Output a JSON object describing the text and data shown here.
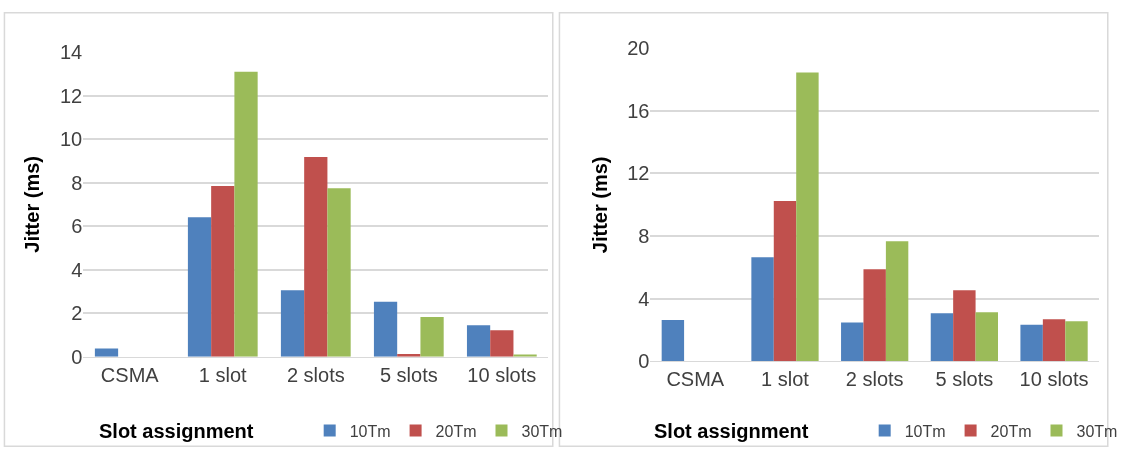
{
  "chart_data": [
    {
      "type": "bar",
      "xlabel": "Slot assignment",
      "ylabel": "Jitter (ms)",
      "categories": [
        "CSMA",
        "1 slot",
        "2 slots",
        "5 slots",
        "10 slots"
      ],
      "series": [
        {
          "name": "10Tm",
          "color": "#4f81bd",
          "values": [
            0.38,
            6.41,
            3.05,
            2.52,
            1.44
          ]
        },
        {
          "name": "20Tm",
          "color": "#c0504d",
          "values": [
            0,
            7.84,
            9.18,
            0.12,
            1.22
          ]
        },
        {
          "name": "30Tm",
          "color": "#9bbb59",
          "values": [
            0,
            13.1,
            7.74,
            1.82,
            0.1
          ]
        }
      ],
      "ylim": [
        0,
        14
      ],
      "yticks": [
        0,
        2,
        4,
        6,
        8,
        10,
        12,
        14
      ],
      "grid": "y",
      "legend": "bottom"
    },
    {
      "type": "bar",
      "xlabel": "Slot assignment",
      "ylabel": "Jitter (ms)",
      "categories": [
        "CSMA",
        "1 slot",
        "2 slots",
        "5 slots",
        "10 slots"
      ],
      "series": [
        {
          "name": "10Tm",
          "color": "#4f81bd",
          "values": [
            2.64,
            6.65,
            2.49,
            3.08,
            2.35
          ]
        },
        {
          "name": "20Tm",
          "color": "#c0504d",
          "values": [
            0,
            10.24,
            5.88,
            4.54,
            2.7
          ]
        },
        {
          "name": "30Tm",
          "color": "#9bbb59",
          "values": [
            0,
            18.44,
            7.67,
            3.14,
            2.56
          ]
        }
      ],
      "ylim": [
        0,
        20
      ],
      "yticks": [
        0,
        4,
        8,
        12,
        16,
        20
      ],
      "grid": "y",
      "legend": "bottom"
    }
  ]
}
